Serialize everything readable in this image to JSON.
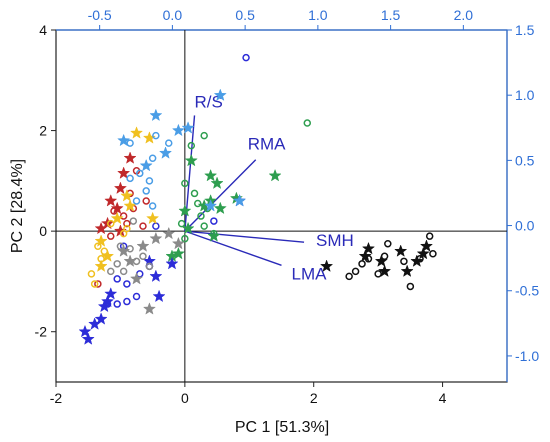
{
  "chart_data": {
    "type": "scatter",
    "title": "",
    "xlabel": "PC 1 [51.3%]",
    "ylabel": "PC 2 [28.4%]",
    "xlim": [
      -2,
      5
    ],
    "ylim": [
      -3,
      4
    ],
    "x_ticks": [
      "-2",
      "0",
      "2",
      "4"
    ],
    "y_ticks": [
      "-2",
      "0",
      "2",
      "4"
    ],
    "top_axis": {
      "lim": [
        -0.8,
        2.3
      ],
      "ticks": [
        "-0.5",
        "0.0",
        "0.5",
        "1.0",
        "1.5",
        "2.0"
      ]
    },
    "right_axis": {
      "lim": [
        -1.2,
        1.5
      ],
      "ticks": [
        "-1.0",
        "-0.5",
        "0.0",
        "0.5",
        "1.0",
        "1.5"
      ]
    },
    "grid": false,
    "reference_lines": [
      "x = 0",
      "y = 0"
    ],
    "colors": {
      "black": "#111111",
      "green": "#2e9e4f",
      "blue": "#2c2cd8",
      "gray": "#8a8a8a",
      "red": "#c0282a",
      "yellow": "#f0c020",
      "lightblue": "#4a9de6",
      "loading": "#2a2ab8",
      "axis_secondary": "#2f6fd6"
    },
    "series": [
      {
        "color": "black",
        "marker": "star",
        "points": [
          [
            2.2,
            -0.7
          ],
          [
            2.8,
            -0.5
          ],
          [
            2.85,
            -0.35
          ],
          [
            3.05,
            -0.6
          ],
          [
            3.1,
            -0.8
          ],
          [
            3.35,
            -0.4
          ],
          [
            3.45,
            -0.8
          ],
          [
            3.6,
            -0.6
          ],
          [
            3.7,
            -0.45
          ],
          [
            3.75,
            -0.3
          ]
        ]
      },
      {
        "color": "black",
        "marker": "open-circle",
        "points": [
          [
            2.55,
            -0.9
          ],
          [
            2.65,
            -0.8
          ],
          [
            2.75,
            -0.65
          ],
          [
            2.85,
            -0.55
          ],
          [
            3.0,
            -0.85
          ],
          [
            3.1,
            -0.5
          ],
          [
            3.15,
            -0.25
          ],
          [
            3.4,
            -0.6
          ],
          [
            3.5,
            -1.1
          ],
          [
            3.8,
            -0.1
          ],
          [
            3.85,
            -0.45
          ],
          [
            3.65,
            -0.55
          ]
        ]
      },
      {
        "color": "green",
        "marker": "star",
        "points": [
          [
            1.4,
            1.1
          ],
          [
            0.8,
            0.65
          ],
          [
            0.5,
            0.95
          ],
          [
            0.4,
            1.1
          ],
          [
            0.4,
            0.6
          ],
          [
            0.3,
            0.5
          ],
          [
            0.1,
            1.4
          ],
          [
            0.0,
            0.4
          ],
          [
            0.05,
            0.05
          ],
          [
            0.45,
            -0.1
          ],
          [
            0.55,
            0.45
          ],
          [
            -0.1,
            -0.45
          ],
          [
            -0.2,
            -0.5
          ]
        ]
      },
      {
        "color": "green",
        "marker": "open-circle",
        "points": [
          [
            1.9,
            2.15
          ],
          [
            0.1,
            1.7
          ],
          [
            0.3,
            1.9
          ],
          [
            0.15,
            0.75
          ],
          [
            0.0,
            0.95
          ],
          [
            0.2,
            0.55
          ],
          [
            0.35,
            0.45
          ],
          [
            0.25,
            0.3
          ],
          [
            -0.05,
            0.15
          ],
          [
            0.0,
            -0.15
          ],
          [
            0.3,
            0.1
          ],
          [
            0.45,
            -0.05
          ]
        ]
      },
      {
        "color": "blue",
        "marker": "star",
        "points": [
          [
            -1.55,
            -2.0
          ],
          [
            -1.5,
            -2.15
          ],
          [
            -1.4,
            -1.85
          ],
          [
            -1.3,
            -1.75
          ],
          [
            -1.25,
            -1.5
          ],
          [
            -1.2,
            -1.4
          ],
          [
            -1.15,
            -1.25
          ],
          [
            -0.4,
            -1.3
          ],
          [
            -0.45,
            -0.9
          ],
          [
            -0.55,
            -0.6
          ],
          [
            -0.2,
            -0.65
          ],
          [
            0.85,
            0.6
          ]
        ]
      },
      {
        "color": "blue",
        "marker": "open-circle",
        "points": [
          [
            -1.2,
            -1.45
          ],
          [
            -1.05,
            -1.45
          ],
          [
            -0.9,
            -1.4
          ],
          [
            -0.75,
            -1.3
          ],
          [
            -0.9,
            -1.05
          ],
          [
            -0.7,
            -0.85
          ],
          [
            -0.55,
            -0.7
          ],
          [
            -1.05,
            -0.95
          ],
          [
            -0.45,
            0.1
          ],
          [
            -0.95,
            -0.3
          ],
          [
            0.45,
            0.2
          ],
          [
            0.95,
            3.45
          ]
        ]
      },
      {
        "color": "gray",
        "marker": "star",
        "points": [
          [
            -0.55,
            -1.55
          ],
          [
            -0.75,
            -0.95
          ],
          [
            -0.85,
            -0.6
          ],
          [
            -0.65,
            -0.3
          ],
          [
            -0.45,
            -0.15
          ],
          [
            -0.25,
            -0.05
          ],
          [
            -0.95,
            -0.4
          ],
          [
            -0.1,
            -0.25
          ]
        ]
      },
      {
        "color": "gray",
        "marker": "open-circle",
        "points": [
          [
            -1.15,
            -0.8
          ],
          [
            -1.05,
            -0.65
          ],
          [
            -0.95,
            -0.8
          ],
          [
            -0.85,
            -0.35
          ],
          [
            -0.75,
            -0.6
          ],
          [
            -0.65,
            -0.5
          ],
          [
            -0.55,
            -0.7
          ],
          [
            -1.0,
            -0.3
          ],
          [
            -0.8,
            0.2
          ]
        ]
      },
      {
        "color": "red",
        "marker": "star",
        "points": [
          [
            -0.85,
            1.45
          ],
          [
            -0.95,
            1.15
          ],
          [
            -1.0,
            0.85
          ],
          [
            -1.15,
            0.6
          ],
          [
            -1.05,
            0.45
          ],
          [
            -1.2,
            0.15
          ],
          [
            -1.0,
            0.0
          ],
          [
            -1.3,
            0.05
          ]
        ]
      },
      {
        "color": "red",
        "marker": "open-circle",
        "points": [
          [
            -0.75,
            1.2
          ],
          [
            -0.85,
            0.75
          ],
          [
            -0.8,
            0.45
          ],
          [
            -0.95,
            0.3
          ],
          [
            -1.1,
            0.4
          ],
          [
            -0.9,
            0.15
          ],
          [
            -1.15,
            -0.1
          ],
          [
            -1.35,
            -1.05
          ],
          [
            -0.65,
            0.1
          ],
          [
            -0.6,
            0.6
          ]
        ]
      },
      {
        "color": "yellow",
        "marker": "star",
        "points": [
          [
            -0.75,
            1.95
          ],
          [
            -0.55,
            1.85
          ],
          [
            -0.9,
            0.7
          ],
          [
            -1.05,
            0.25
          ],
          [
            -0.5,
            0.25
          ],
          [
            -1.3,
            -0.2
          ],
          [
            -1.2,
            -0.5
          ],
          [
            -1.3,
            -0.7
          ],
          [
            -0.85,
            0.5
          ]
        ]
      },
      {
        "color": "yellow",
        "marker": "open-circle",
        "points": [
          [
            -1.35,
            -0.3
          ],
          [
            -1.3,
            -0.55
          ],
          [
            -1.45,
            -0.85
          ],
          [
            -1.4,
            -1.05
          ],
          [
            -1.25,
            -0.4
          ],
          [
            -0.95,
            -0.05
          ],
          [
            -1.15,
            0.15
          ],
          [
            -0.9,
            0.05
          ]
        ]
      },
      {
        "color": "lightblue",
        "marker": "star",
        "points": [
          [
            0.55,
            2.7
          ],
          [
            -0.45,
            2.3
          ],
          [
            -0.95,
            1.8
          ],
          [
            -0.3,
            1.55
          ],
          [
            -0.6,
            1.3
          ],
          [
            0.85,
            0.6
          ],
          [
            0.4,
            0.5
          ],
          [
            -0.1,
            2.0
          ],
          [
            0.05,
            2.05
          ]
        ]
      },
      {
        "color": "lightblue",
        "marker": "open-circle",
        "points": [
          [
            -0.45,
            1.9
          ],
          [
            -0.25,
            1.75
          ],
          [
            -0.85,
            1.75
          ],
          [
            -0.5,
            1.45
          ],
          [
            -0.7,
            1.15
          ],
          [
            -0.55,
            1.0
          ],
          [
            -0.85,
            1.05
          ],
          [
            -0.6,
            0.8
          ],
          [
            -0.75,
            0.6
          ],
          [
            -0.5,
            0.5
          ]
        ]
      }
    ],
    "loadings": [
      {
        "label": "R/S",
        "x": 0.15,
        "y": 2.3
      },
      {
        "label": "RMA",
        "x": 1.1,
        "y": 1.42
      },
      {
        "label": "SMH",
        "x": 1.85,
        "y": -0.22
      },
      {
        "label": "LMA",
        "x": 1.5,
        "y": -0.68
      }
    ]
  }
}
